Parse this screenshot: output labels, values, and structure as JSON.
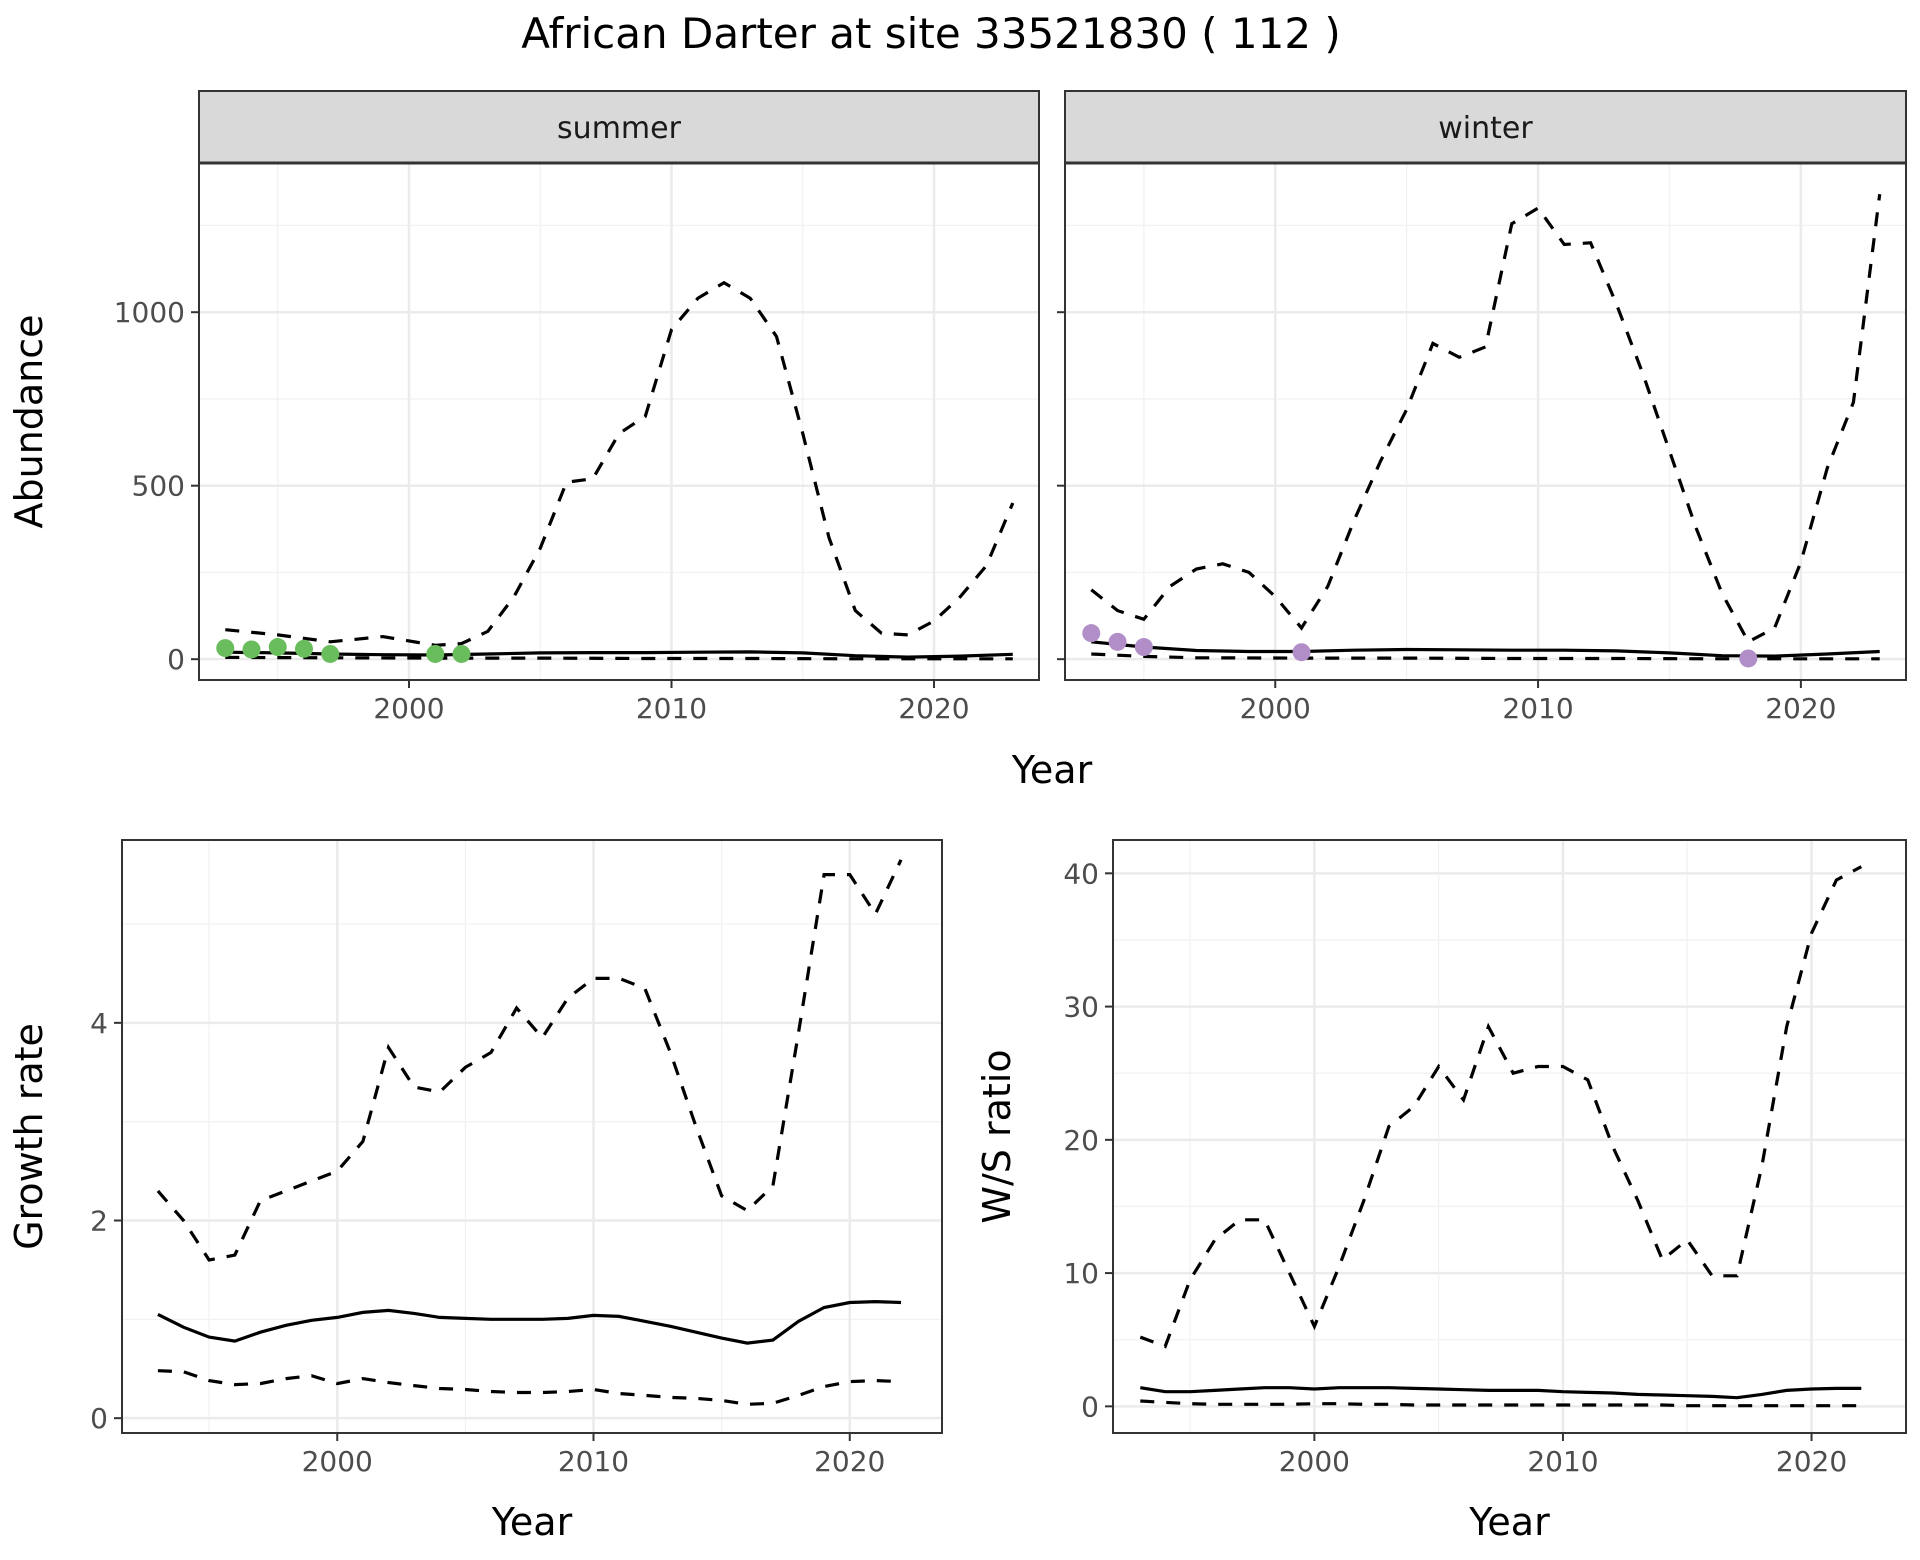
{
  "title": "African Darter at site 33521830 ( 112 )",
  "colors": {
    "summer_points": "#6abd5c",
    "winter_points": "#b18ec7",
    "lines": "#000000",
    "strip": "#d9d9d9"
  },
  "x_axis_label": "Year",
  "chart_data": [
    {
      "type": "line",
      "facet": "summer",
      "ylabel": "Abundance",
      "xlim": [
        1992,
        2024
      ],
      "ylim": [
        -60,
        1430
      ],
      "x_ticks": [
        2000,
        2010,
        2020
      ],
      "y_ticks": [
        0,
        500,
        1000
      ],
      "grid": true,
      "series": [
        {
          "style": "solid",
          "x": [
            1993,
            1995,
            1997,
            1999,
            2001,
            2003,
            2005,
            2007,
            2009,
            2011,
            2013,
            2015,
            2017,
            2019,
            2021,
            2023
          ],
          "y": [
            20,
            18,
            15,
            13,
            12,
            15,
            18,
            19,
            19,
            20,
            21,
            18,
            10,
            6,
            9,
            14
          ]
        },
        {
          "style": "dashed",
          "x": [
            1993,
            1995,
            1997,
            1999,
            2001,
            2002,
            2003,
            2004,
            2005,
            2006,
            2007,
            2008,
            2009,
            2010,
            2011,
            2012,
            2013,
            2014,
            2015,
            2016,
            2017,
            2018,
            2019,
            2020,
            2021,
            2022,
            2023
          ],
          "y": [
            85,
            70,
            50,
            65,
            40,
            45,
            80,
            180,
            320,
            510,
            520,
            650,
            700,
            950,
            1040,
            1085,
            1040,
            930,
            650,
            350,
            140,
            75,
            70,
            110,
            180,
            270,
            450
          ]
        },
        {
          "style": "dashed",
          "x": [
            1993,
            1997,
            2001,
            2005,
            2009,
            2013,
            2017,
            2020,
            2023
          ],
          "y": [
            5,
            4,
            3,
            3,
            2,
            2,
            1,
            1,
            1
          ]
        }
      ],
      "points": {
        "x": [
          1993,
          1994,
          1995,
          1996,
          1997,
          2001,
          2002
        ],
        "y": [
          32,
          28,
          35,
          30,
          15,
          15,
          15
        ]
      }
    },
    {
      "type": "line",
      "facet": "winter",
      "ylabel": "Abundance",
      "xlim": [
        1992,
        2024
      ],
      "ylim": [
        -60,
        1430
      ],
      "x_ticks": [
        2000,
        2010,
        2020
      ],
      "y_ticks": [
        0,
        500,
        1000
      ],
      "grid": true,
      "series": [
        {
          "style": "solid",
          "x": [
            1993,
            1995,
            1997,
            1999,
            2001,
            2003,
            2005,
            2007,
            2009,
            2011,
            2013,
            2015,
            2017,
            2019,
            2021,
            2023
          ],
          "y": [
            50,
            35,
            25,
            22,
            22,
            26,
            28,
            27,
            26,
            26,
            24,
            18,
            10,
            9,
            15,
            22
          ]
        },
        {
          "style": "dashed",
          "x": [
            1993,
            1994,
            1995,
            1996,
            1997,
            1998,
            1999,
            2000,
            2001,
            2002,
            2003,
            2004,
            2005,
            2006,
            2007,
            2008,
            2009,
            2010,
            2011,
            2012,
            2013,
            2014,
            2015,
            2016,
            2017,
            2018,
            2019,
            2020,
            2021,
            2022,
            2023
          ],
          "y": [
            200,
            140,
            115,
            210,
            260,
            275,
            250,
            180,
            90,
            210,
            400,
            570,
            720,
            910,
            870,
            900,
            1255,
            1300,
            1195,
            1200,
            1020,
            820,
            600,
            380,
            190,
            50,
            90,
            280,
            550,
            740,
            1340
          ]
        },
        {
          "style": "dashed",
          "x": [
            1993,
            1995,
            1997,
            2001,
            2005,
            2009,
            2013,
            2017,
            2020,
            2023
          ],
          "y": [
            15,
            8,
            4,
            3,
            3,
            2,
            2,
            1,
            1,
            1
          ]
        }
      ],
      "points": {
        "x": [
          1993,
          1994,
          1995,
          2001,
          2018
        ],
        "y": [
          75,
          50,
          35,
          20,
          2
        ]
      }
    },
    {
      "type": "line",
      "ylabel": "Growth rate",
      "xlabel": "Year",
      "xlim": [
        1991.6,
        2023.6
      ],
      "ylim": [
        -0.15,
        5.85
      ],
      "x_ticks": [
        2000,
        2010,
        2020
      ],
      "y_ticks": [
        0,
        2,
        4
      ],
      "grid": true,
      "series": [
        {
          "style": "solid",
          "x": [
            1993,
            1994,
            1995,
            1996,
            1997,
            1998,
            1999,
            2000,
            2001,
            2002,
            2003,
            2004,
            2005,
            2006,
            2007,
            2008,
            2009,
            2010,
            2011,
            2012,
            2013,
            2014,
            2015,
            2016,
            2017,
            2018,
            2019,
            2020,
            2021,
            2022
          ],
          "y": [
            1.05,
            0.92,
            0.82,
            0.78,
            0.87,
            0.94,
            0.99,
            1.02,
            1.07,
            1.09,
            1.06,
            1.02,
            1.01,
            1.0,
            1.0,
            1.0,
            1.01,
            1.04,
            1.03,
            0.98,
            0.93,
            0.87,
            0.81,
            0.76,
            0.79,
            0.98,
            1.12,
            1.17,
            1.18,
            1.17
          ]
        },
        {
          "style": "dashed",
          "x": [
            1993,
            1994,
            1995,
            1996,
            1997,
            1998,
            1999,
            2000,
            2001,
            2002,
            2003,
            2004,
            2005,
            2006,
            2007,
            2008,
            2009,
            2010,
            2011,
            2012,
            2013,
            2014,
            2015,
            2016,
            2017,
            2018,
            2019,
            2020,
            2021,
            2022
          ],
          "y": [
            2.3,
            2.0,
            1.6,
            1.65,
            2.2,
            2.3,
            2.4,
            2.5,
            2.8,
            3.75,
            3.35,
            3.3,
            3.55,
            3.7,
            4.15,
            3.85,
            4.25,
            4.45,
            4.45,
            4.35,
            3.7,
            2.95,
            2.25,
            2.1,
            2.35,
            3.9,
            5.5,
            5.5,
            5.1,
            5.65
          ]
        },
        {
          "style": "dashed",
          "x": [
            1993,
            1994,
            1995,
            1996,
            1997,
            1998,
            1999,
            2000,
            2001,
            2002,
            2003,
            2004,
            2005,
            2006,
            2007,
            2008,
            2009,
            2010,
            2011,
            2012,
            2013,
            2014,
            2015,
            2016,
            2017,
            2018,
            2019,
            2020,
            2021,
            2022
          ],
          "y": [
            0.48,
            0.47,
            0.38,
            0.34,
            0.35,
            0.4,
            0.43,
            0.35,
            0.4,
            0.36,
            0.33,
            0.3,
            0.29,
            0.27,
            0.26,
            0.26,
            0.27,
            0.29,
            0.25,
            0.23,
            0.21,
            0.2,
            0.18,
            0.14,
            0.15,
            0.23,
            0.32,
            0.37,
            0.38,
            0.37
          ]
        }
      ]
    },
    {
      "type": "line",
      "ylabel": "W/S ratio",
      "xlabel": "Year",
      "xlim": [
        1991.9,
        2023.8
      ],
      "ylim": [
        -2.0,
        42.5
      ],
      "x_ticks": [
        2000,
        2010,
        2020
      ],
      "y_ticks": [
        0,
        10,
        20,
        30,
        40
      ],
      "grid": true,
      "series": [
        {
          "style": "solid",
          "x": [
            1993,
            1994,
            1995,
            1996,
            1997,
            1998,
            1999,
            2000,
            2001,
            2002,
            2003,
            2004,
            2005,
            2006,
            2007,
            2008,
            2009,
            2010,
            2011,
            2012,
            2013,
            2014,
            2015,
            2016,
            2017,
            2018,
            2019,
            2020,
            2021,
            2022
          ],
          "y": [
            1.4,
            1.1,
            1.1,
            1.2,
            1.3,
            1.4,
            1.4,
            1.3,
            1.4,
            1.4,
            1.4,
            1.35,
            1.3,
            1.25,
            1.2,
            1.2,
            1.2,
            1.1,
            1.05,
            1.0,
            0.9,
            0.85,
            0.8,
            0.75,
            0.65,
            0.9,
            1.2,
            1.3,
            1.35,
            1.35
          ]
        },
        {
          "style": "dashed",
          "x": [
            1993,
            1994,
            1995,
            1996,
            1997,
            1998,
            1999,
            2000,
            2001,
            2002,
            2003,
            2004,
            2005,
            2006,
            2007,
            2008,
            2009,
            2010,
            2011,
            2012,
            2013,
            2014,
            2015,
            2016,
            2017,
            2018,
            2019,
            2020,
            2021,
            2022
          ],
          "y": [
            5.2,
            4.5,
            9.5,
            12.5,
            14.0,
            14.0,
            10.0,
            6.0,
            10.5,
            15.5,
            21.0,
            22.5,
            25.5,
            23.0,
            28.5,
            25.0,
            25.5,
            25.5,
            24.5,
            19.5,
            15.5,
            11.0,
            12.5,
            9.8,
            9.8,
            18.0,
            28.5,
            35.5,
            39.5,
            40.5
          ]
        },
        {
          "style": "dashed",
          "x": [
            1993,
            1994,
            1995,
            1996,
            1997,
            1998,
            1999,
            2000,
            2001,
            2002,
            2003,
            2004,
            2005,
            2006,
            2007,
            2008,
            2009,
            2010,
            2011,
            2012,
            2013,
            2014,
            2015,
            2016,
            2017,
            2018,
            2019,
            2020,
            2021,
            2022
          ],
          "y": [
            0.4,
            0.3,
            0.2,
            0.15,
            0.15,
            0.15,
            0.15,
            0.2,
            0.2,
            0.15,
            0.15,
            0.1,
            0.1,
            0.1,
            0.1,
            0.1,
            0.1,
            0.1,
            0.1,
            0.1,
            0.1,
            0.1,
            0.05,
            0.05,
            0.05,
            0.05,
            0.05,
            0.05,
            0.05,
            0.05
          ]
        }
      ]
    }
  ]
}
